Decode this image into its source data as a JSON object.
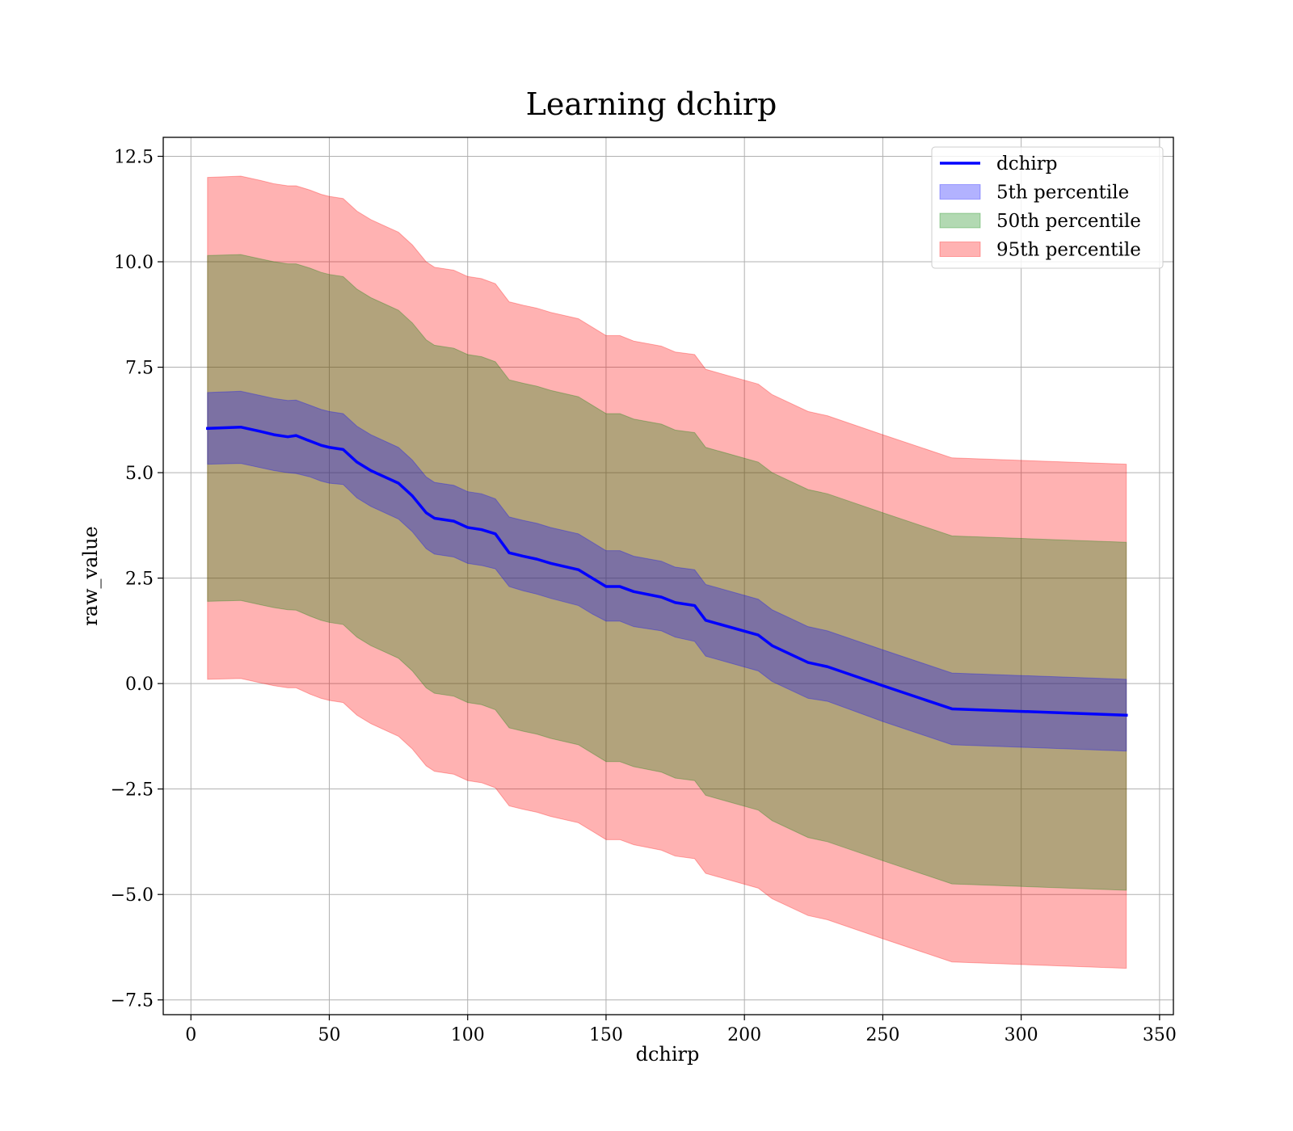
{
  "chart_data": {
    "type": "line",
    "title": "Learning dchirp",
    "xlabel": "dchirp",
    "ylabel": "raw_value",
    "xlim": [
      -10,
      355
    ],
    "ylim": [
      -7.85,
      12.95
    ],
    "xticks": [
      0,
      50,
      100,
      150,
      200,
      250,
      300,
      350
    ],
    "xtick_labels": [
      "0",
      "50",
      "100",
      "150",
      "200",
      "250",
      "300",
      "350"
    ],
    "yticks": [
      -7.5,
      -5.0,
      -2.5,
      0.0,
      2.5,
      5.0,
      7.5,
      10.0,
      12.5
    ],
    "ytick_labels": [
      "−7.5",
      "−5.0",
      "−2.5",
      "0.0",
      "2.5",
      "5.0",
      "7.5",
      "10.0",
      "12.5"
    ],
    "grid": true,
    "legend_position": "top-right",
    "colors": {
      "line": "#0000ff",
      "p5": "#0000ff",
      "p50": "#008000",
      "p95": "#ff0000",
      "grid": "#b0b0b0",
      "axes": "#000000"
    },
    "legend": [
      {
        "label": "dchirp",
        "kind": "line",
        "color": "#0000ff"
      },
      {
        "label": "5th percentile",
        "kind": "patch",
        "color": "#0000ff"
      },
      {
        "label": "50th percentile",
        "kind": "patch",
        "color": "#008000"
      },
      {
        "label": "95th percentile",
        "kind": "patch",
        "color": "#ff0000"
      }
    ],
    "x": [
      6,
      18,
      25,
      30,
      35,
      38,
      43,
      47,
      50,
      55,
      60,
      65,
      70,
      75,
      80,
      85,
      88,
      95,
      100,
      105,
      110,
      115,
      120,
      125,
      130,
      140,
      145,
      150,
      155,
      160,
      170,
      175,
      182,
      186,
      205,
      210,
      223,
      230,
      250,
      275,
      338
    ],
    "line": [
      6.05,
      6.08,
      5.98,
      5.9,
      5.85,
      5.88,
      5.75,
      5.65,
      5.6,
      5.55,
      5.25,
      5.05,
      4.9,
      4.75,
      4.45,
      4.05,
      3.92,
      3.85,
      3.7,
      3.65,
      3.55,
      3.1,
      3.02,
      2.95,
      2.85,
      2.7,
      2.5,
      2.3,
      2.3,
      2.18,
      2.05,
      1.92,
      1.85,
      1.5,
      1.15,
      0.9,
      0.5,
      0.4,
      -0.05,
      -0.6,
      -0.75
    ],
    "series": [
      {
        "name": "5th percentile",
        "lower": [
          5.2,
          5.22,
          5.12,
          5.05,
          5.0,
          4.98,
          4.9,
          4.8,
          4.75,
          4.72,
          4.4,
          4.2,
          4.05,
          3.9,
          3.6,
          3.2,
          3.07,
          3.0,
          2.85,
          2.8,
          2.72,
          2.3,
          2.2,
          2.12,
          2.02,
          1.85,
          1.65,
          1.48,
          1.48,
          1.35,
          1.25,
          1.1,
          1.0,
          0.65,
          0.3,
          0.05,
          -0.35,
          -0.42,
          -0.9,
          -1.45,
          -1.6
        ],
        "upper": [
          6.9,
          6.93,
          6.83,
          6.76,
          6.71,
          6.72,
          6.6,
          6.5,
          6.45,
          6.4,
          6.1,
          5.9,
          5.75,
          5.6,
          5.3,
          4.9,
          4.77,
          4.7,
          4.55,
          4.5,
          4.38,
          3.95,
          3.87,
          3.8,
          3.7,
          3.55,
          3.35,
          3.15,
          3.15,
          3.02,
          2.9,
          2.76,
          2.7,
          2.35,
          2.0,
          1.75,
          1.35,
          1.25,
          0.8,
          0.25,
          0.1
        ]
      },
      {
        "name": "50th percentile",
        "lower": [
          1.95,
          1.97,
          1.87,
          1.8,
          1.75,
          1.74,
          1.6,
          1.5,
          1.45,
          1.4,
          1.1,
          0.9,
          0.75,
          0.6,
          0.3,
          -0.1,
          -0.23,
          -0.3,
          -0.45,
          -0.5,
          -0.62,
          -1.05,
          -1.13,
          -1.2,
          -1.3,
          -1.45,
          -1.65,
          -1.85,
          -1.85,
          -1.97,
          -2.1,
          -2.24,
          -2.3,
          -2.65,
          -3.0,
          -3.25,
          -3.65,
          -3.75,
          -4.2,
          -4.75,
          -4.9
        ],
        "upper": [
          10.15,
          10.17,
          10.07,
          10.0,
          9.95,
          9.95,
          9.85,
          9.75,
          9.7,
          9.65,
          9.35,
          9.15,
          9.0,
          8.85,
          8.55,
          8.15,
          8.02,
          7.95,
          7.8,
          7.75,
          7.63,
          7.2,
          7.12,
          7.05,
          6.95,
          6.8,
          6.6,
          6.4,
          6.4,
          6.27,
          6.15,
          6.01,
          5.95,
          5.6,
          5.25,
          5.0,
          4.6,
          4.5,
          4.05,
          3.5,
          3.35
        ]
      },
      {
        "name": "95th percentile",
        "lower": [
          0.1,
          0.12,
          0.02,
          -0.05,
          -0.1,
          -0.1,
          -0.25,
          -0.35,
          -0.4,
          -0.45,
          -0.75,
          -0.95,
          -1.1,
          -1.25,
          -1.55,
          -1.95,
          -2.08,
          -2.15,
          -2.3,
          -2.35,
          -2.47,
          -2.9,
          -2.98,
          -3.05,
          -3.15,
          -3.3,
          -3.5,
          -3.7,
          -3.7,
          -3.82,
          -3.95,
          -4.09,
          -4.15,
          -4.5,
          -4.85,
          -5.1,
          -5.5,
          -5.6,
          -6.05,
          -6.6,
          -6.75
        ],
        "upper": [
          12.0,
          12.03,
          11.93,
          11.85,
          11.8,
          11.8,
          11.7,
          11.6,
          11.55,
          11.5,
          11.2,
          11.0,
          10.85,
          10.7,
          10.4,
          10.0,
          9.87,
          9.8,
          9.65,
          9.6,
          9.48,
          9.05,
          8.97,
          8.9,
          8.8,
          8.65,
          8.45,
          8.25,
          8.25,
          8.12,
          8.0,
          7.86,
          7.8,
          7.45,
          7.1,
          6.85,
          6.45,
          6.35,
          5.9,
          5.35,
          5.2
        ]
      }
    ]
  }
}
